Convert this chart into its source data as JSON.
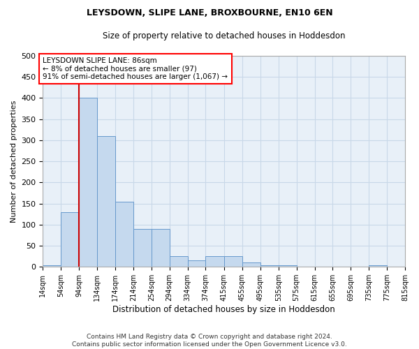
{
  "title": "LEYSDOWN, SLIPE LANE, BROXBOURNE, EN10 6EN",
  "subtitle": "Size of property relative to detached houses in Hoddesdon",
  "xlabel": "Distribution of detached houses by size in Hoddesdon",
  "ylabel": "Number of detached properties",
  "footer_line1": "Contains HM Land Registry data © Crown copyright and database right 2024.",
  "footer_line2": "Contains public sector information licensed under the Open Government Licence v3.0.",
  "annotation_title": "LEYSDOWN SLIPE LANE: 86sqm",
  "annotation_line2": "← 8% of detached houses are smaller (97)",
  "annotation_line3": "91% of semi-detached houses are larger (1,067) →",
  "bar_color": "#c5d9ee",
  "bar_edge_color": "#6699cc",
  "grid_color": "#c8d8e8",
  "bg_color": "#e8f0f8",
  "ref_line_color": "#cc0000",
  "ref_line_x": 94,
  "ylim": [
    0,
    500
  ],
  "yticks": [
    0,
    50,
    100,
    150,
    200,
    250,
    300,
    350,
    400,
    450,
    500
  ],
  "bin_edges": [
    14,
    54,
    94,
    134,
    174,
    214,
    254,
    294,
    334,
    374,
    415,
    455,
    495,
    535,
    575,
    615,
    655,
    695,
    735,
    775,
    815
  ],
  "bar_heights": [
    3,
    130,
    400,
    310,
    155,
    90,
    90,
    25,
    15,
    25,
    25,
    10,
    3,
    3,
    0,
    0,
    0,
    0,
    3,
    0
  ],
  "title_fontsize": 9,
  "subtitle_fontsize": 8.5,
  "ylabel_fontsize": 8,
  "xlabel_fontsize": 8.5,
  "ytick_fontsize": 8,
  "xtick_fontsize": 7
}
